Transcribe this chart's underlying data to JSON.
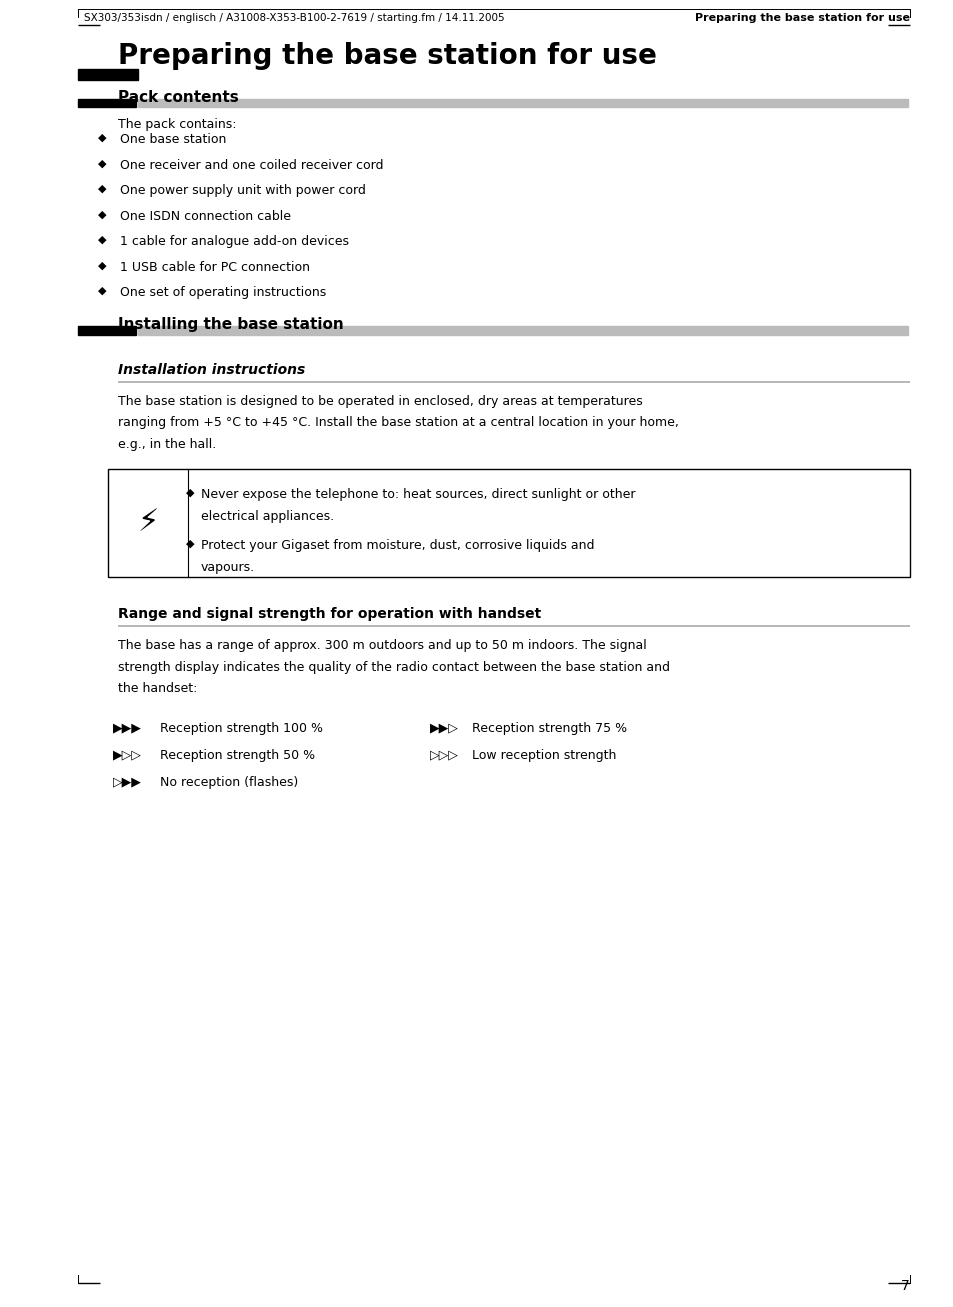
{
  "header_text": "SX303/353isdn / englisch / A31008-X353-B100-2-7619 / starting.fm / 14.11.2005",
  "header_right_text": "Preparing the base station for use",
  "main_title": "Preparing the base station for use",
  "page_number": "7",
  "section1_title": "Pack contents",
  "section1_intro": "The pack contains:",
  "section1_items": [
    "One base station",
    "One receiver and one coiled receiver cord",
    "One power supply unit with power cord",
    "One ISDN connection cable",
    "1 cable for analogue add-on devices",
    "1 USB cable for PC connection",
    "One set of operating instructions"
  ],
  "section2_title": "Installing the base station",
  "section3_title": "Installation instructions",
  "section3_lines": [
    "The base station is designed to be operated in enclosed, dry areas at temperatures",
    "ranging from +5 °C to +45 °C. Install the base station at a central location in your home,",
    "e.g., in the hall."
  ],
  "warning_lines1": [
    "Never expose the telephone to: heat sources, direct sunlight or other",
    "electrical appliances."
  ],
  "warning_lines2": [
    "Protect your Gigaset from moisture, dust, corrosive liquids and",
    "vapours."
  ],
  "section4_title": "Range and signal strength for operation with handset",
  "section4_lines": [
    "The base has a range of approx. 300 m outdoors and up to 50 m indoors. The signal",
    "strength display indicates the quality of the radio contact between the base station and",
    "the handset:"
  ],
  "signal_rows": [
    [
      {
        "label": "Reception strength 100 %"
      },
      {
        "label": "Reception strength 75 %"
      }
    ],
    [
      {
        "label": "Reception strength 50 %"
      },
      {
        "label": "Low reception strength"
      }
    ],
    [
      {
        "label": "No reception (flashes)"
      },
      null
    ]
  ],
  "bg_color": "#ffffff"
}
